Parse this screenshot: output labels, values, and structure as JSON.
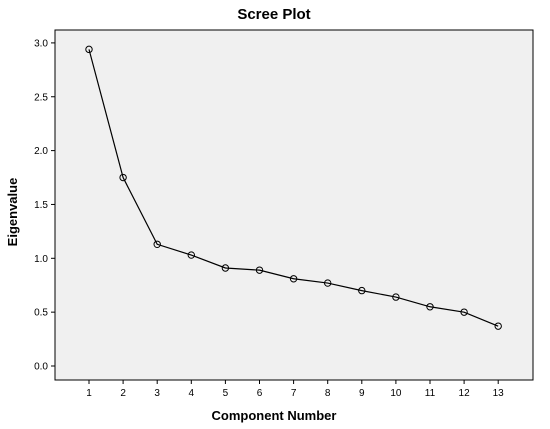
{
  "chart_data": {
    "type": "line",
    "title": "Scree Plot",
    "xlabel": "Component Number",
    "ylabel": "Eigenvalue",
    "x": [
      1,
      2,
      3,
      4,
      5,
      6,
      7,
      8,
      9,
      10,
      11,
      12,
      13
    ],
    "series": [
      {
        "values": [
          2.94,
          1.75,
          1.13,
          1.03,
          0.91,
          0.89,
          0.81,
          0.77,
          0.7,
          0.64,
          0.55,
          0.5,
          0.37
        ]
      }
    ],
    "x_ticks": [
      "1",
      "2",
      "3",
      "4",
      "5",
      "6",
      "7",
      "8",
      "9",
      "10",
      "11",
      "12",
      "13"
    ],
    "y_ticks": [
      "0.0",
      "0.5",
      "1.0",
      "1.5",
      "2.0",
      "2.5",
      "3.0"
    ],
    "ylim": [
      0.0,
      3.0
    ],
    "grid": false,
    "plot_background": "#f0f0f0",
    "line_color": "#000000",
    "marker": "open-circle"
  }
}
